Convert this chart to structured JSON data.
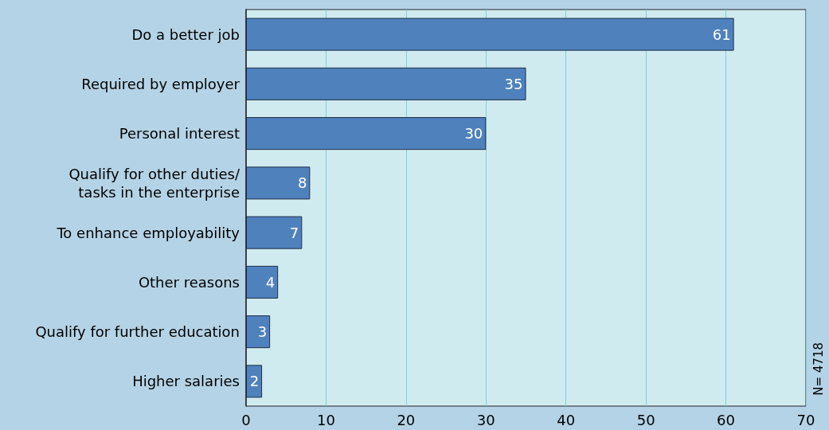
{
  "chart_data": {
    "type": "bar",
    "orientation": "horizontal",
    "categories": [
      "Do a better job",
      "Required by employer",
      "Personal interest",
      "Qualify for other duties/\ntasks in the enterprise",
      "To enhance employability",
      "Other reasons",
      "Qualify for further education",
      "Higher salaries"
    ],
    "values": [
      61,
      35,
      30,
      8,
      7,
      4,
      3,
      2
    ],
    "color": "#4f81bd",
    "xlim": [
      0,
      70
    ],
    "xticks": [
      0,
      10,
      20,
      30,
      40,
      50,
      60,
      70
    ],
    "grid": "x",
    "data_labels": true,
    "annotations": [
      "N= 4718"
    ]
  }
}
